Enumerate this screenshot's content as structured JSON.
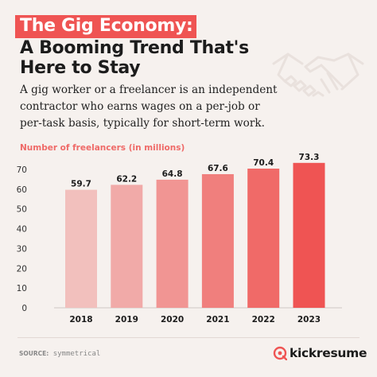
{
  "title": {
    "line1": "The Gig Economy:",
    "line2": "A Booming Trend That's",
    "line3": "Here to Stay"
  },
  "description": "A gig worker or a freelancer is an independent contractor who earns wages on a per-job or per-task basis, typically for short-term work.",
  "footer": {
    "source_label": "SOURCE:",
    "source_value": "symmetrical",
    "brand": "kickresume"
  },
  "icons": {
    "illustration": "handshake-icon",
    "brand_logo": "kickresume-logo-icon"
  },
  "colors": {
    "accent": "#ef5453",
    "background": "#f6f1ee",
    "bar_start": "#f2c0bd",
    "bar_end": "#ef5453"
  },
  "chart_data": {
    "type": "bar",
    "title": "Number of freelancers (in millions)",
    "xlabel": "",
    "ylabel": "",
    "categories": [
      "2018",
      "2019",
      "2020",
      "2021",
      "2022",
      "2023"
    ],
    "values": [
      59.7,
      62.2,
      64.8,
      67.6,
      70.4,
      73.3
    ],
    "value_labels": [
      "59.7",
      "62.2",
      "64.8",
      "67.6",
      "70.4",
      "73.3"
    ],
    "yticks": [
      0,
      10,
      20,
      30,
      40,
      50,
      60,
      70
    ],
    "ylim": [
      0,
      70
    ],
    "grid": false,
    "legend": "none"
  }
}
